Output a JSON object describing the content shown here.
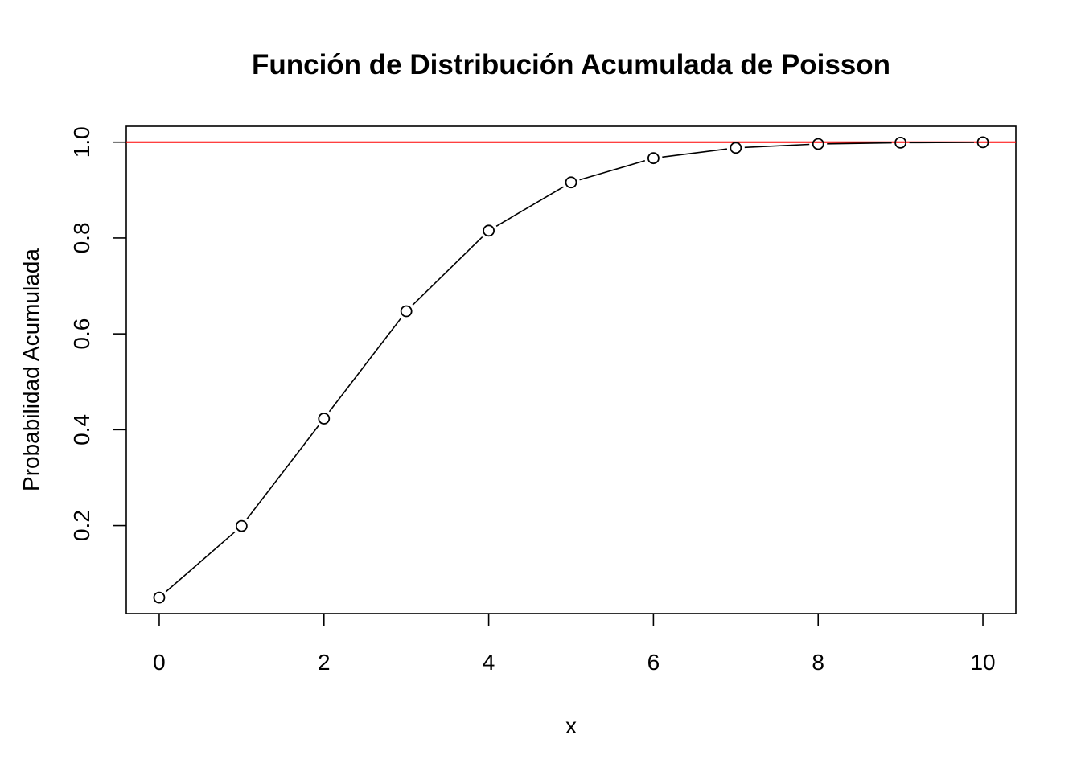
{
  "chart_data": {
    "type": "line",
    "title": "Función de Distribución Acumulada de Poisson",
    "xlabel": "x",
    "ylabel": "Probabilidad Acumulada",
    "x": [
      0,
      1,
      2,
      3,
      4,
      5,
      6,
      7,
      8,
      9,
      10
    ],
    "series": [
      {
        "values": [
          0.0498,
          0.1991,
          0.4232,
          0.6472,
          0.8153,
          0.9161,
          0.9665,
          0.9881,
          0.9962,
          0.9989,
          0.9997
        ],
        "color": "#000000",
        "marker": "open-circle"
      }
    ],
    "reference_lines": [
      {
        "orientation": "horizontal",
        "y": 1.0,
        "color": "#ff0000"
      }
    ],
    "xlim": [
      -0.4,
      10.4
    ],
    "ylim": [
      0.0164,
      1.0331
    ],
    "xticks": [
      0,
      2,
      4,
      6,
      8,
      10
    ],
    "xtick_labels": [
      "0",
      "2",
      "4",
      "6",
      "8",
      "10"
    ],
    "yticks": [
      0.2,
      0.4,
      0.6,
      0.8,
      1.0
    ],
    "ytick_labels": [
      "0.2",
      "0.4",
      "0.6",
      "0.8",
      "1.0"
    ],
    "grid": false,
    "legend": "none"
  }
}
